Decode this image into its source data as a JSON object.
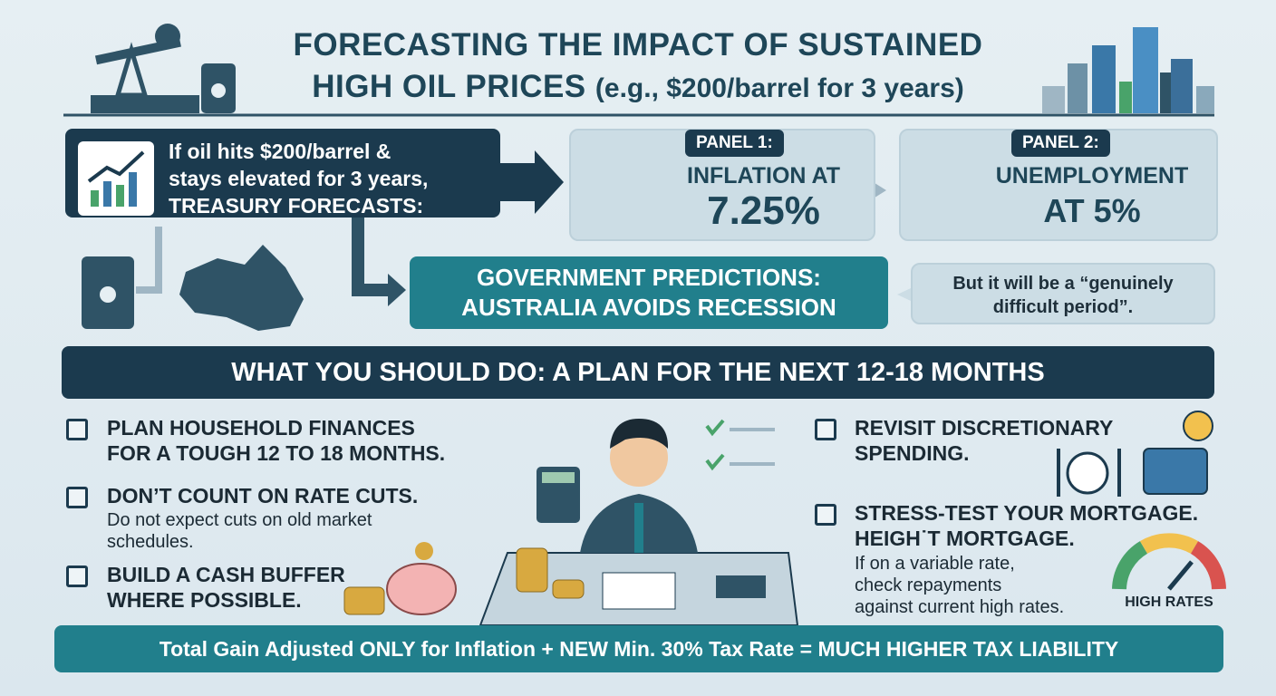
{
  "header": {
    "title_line1": "FORECASTING THE IMPACT OF SUSTAINED",
    "title_line2": "HIGH OIL PRICES",
    "title_paren": "(e.g., $200/barrel for 3 years)"
  },
  "intro": {
    "lines": [
      "If oil hits $200/barrel &",
      "stays elevated for 3 years,",
      "TREASURY FORECASTS:"
    ]
  },
  "panels": [
    {
      "label": "PANEL 1:",
      "lines": [
        "INFLATION AT",
        "7.25%"
      ]
    },
    {
      "label": "PANEL 2:",
      "lines": [
        "UNEMPLOYMENT",
        "AT 5%"
      ]
    }
  ],
  "prediction": {
    "lines": [
      "GOVERNMENT PREDICTIONS:",
      "AUSTRALIA AVOIDS RECESSION"
    ]
  },
  "quote": {
    "lines": [
      "But it will be a “genuinely",
      "difficult period”."
    ]
  },
  "section_heading": "WHAT YOU SHOULD DO: A PLAN FOR THE NEXT 12-18 MONTHS",
  "left_items": [
    {
      "lines": [
        "PLAN HOUSEHOLD FINANCES",
        "FOR A TOUGH 12 TO 18 MONTHS."
      ]
    },
    {
      "lines": [
        "DON’T COUNT ON RATE CUTS."
      ],
      "detail": [
        "Do not expect cuts on old market",
        "schedules."
      ]
    },
    {
      "lines": [
        "BUILD A CASH BUFFER",
        "WHERE POSSIBLE."
      ]
    }
  ],
  "right_items": [
    {
      "lines": [
        "REVISIT DISCRETIONARY",
        "SPENDING."
      ]
    },
    {
      "lines": [
        "STRESS-TEST YOUR MORTGAGE.",
        "HEIGH˙T MORTGAGE."
      ],
      "detail": [
        "If on a variable rate,",
        "check repayments",
        "against current high rates."
      ]
    }
  ],
  "gauge_label": "HIGH RATES",
  "footer": "Total Gain Adjusted ONLY for Inflation + NEW Min. 30% Tax Rate = MUCH HIGHER TAX LIABILITY"
}
